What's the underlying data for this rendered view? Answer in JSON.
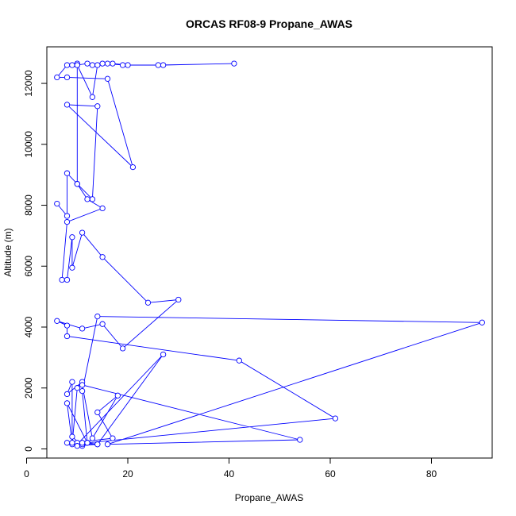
{
  "chart_data": {
    "type": "line",
    "title": "ORCAS RF08-9 Propane_AWAS",
    "xlabel": "Propane_AWAS",
    "ylabel": "Altitude (m)",
    "xlim": [
      4,
      92
    ],
    "ylim": [
      -300,
      13200
    ],
    "xticks": [
      0,
      20,
      40,
      60,
      80
    ],
    "yticks": [
      0,
      2000,
      4000,
      6000,
      8000,
      10000,
      12000
    ],
    "grid": false,
    "series_color": "#0000ff",
    "marker": "open-circle",
    "x": [
      6,
      8,
      8,
      10,
      13,
      14,
      8,
      21,
      16,
      8,
      6,
      8,
      9,
      10,
      10,
      12,
      13,
      15,
      17,
      20,
      26,
      41,
      27,
      19,
      16,
      14,
      13,
      10,
      10,
      12,
      15,
      8,
      7,
      8,
      9,
      9,
      11,
      15,
      24,
      30,
      19,
      15,
      11,
      6,
      8,
      8,
      42,
      61,
      9,
      10,
      11,
      8,
      9,
      9,
      11,
      12,
      8,
      9,
      17,
      14,
      18,
      13,
      11,
      54,
      16,
      90,
      14,
      11,
      12,
      14,
      27,
      10,
      11,
      11,
      12,
      10,
      10,
      14,
      8
    ],
    "y": [
      8050,
      7650,
      9050,
      8700,
      8200,
      11250,
      11300,
      9250,
      12150,
      12200,
      12200,
      12600,
      12600,
      12650,
      12600,
      12650,
      12600,
      12650,
      12650,
      12600,
      12600,
      12650,
      12600,
      12600,
      12650,
      12600,
      11550,
      12600,
      8700,
      8200,
      7900,
      7450,
      5550,
      5550,
      6950,
      5950,
      7100,
      6300,
      4800,
      4900,
      3300,
      4100,
      3950,
      4200,
      4050,
      3700,
      2900,
      1000,
      150,
      2000,
      2200,
      1800,
      2200,
      400,
      100,
      200,
      1500,
      200,
      350,
      1200,
      1750,
      350,
      2100,
      300,
      150,
      4150,
      4350,
      1900,
      200,
      150,
      3100,
      150,
      150,
      200,
      200,
      200,
      100,
      150,
      200
    ]
  }
}
